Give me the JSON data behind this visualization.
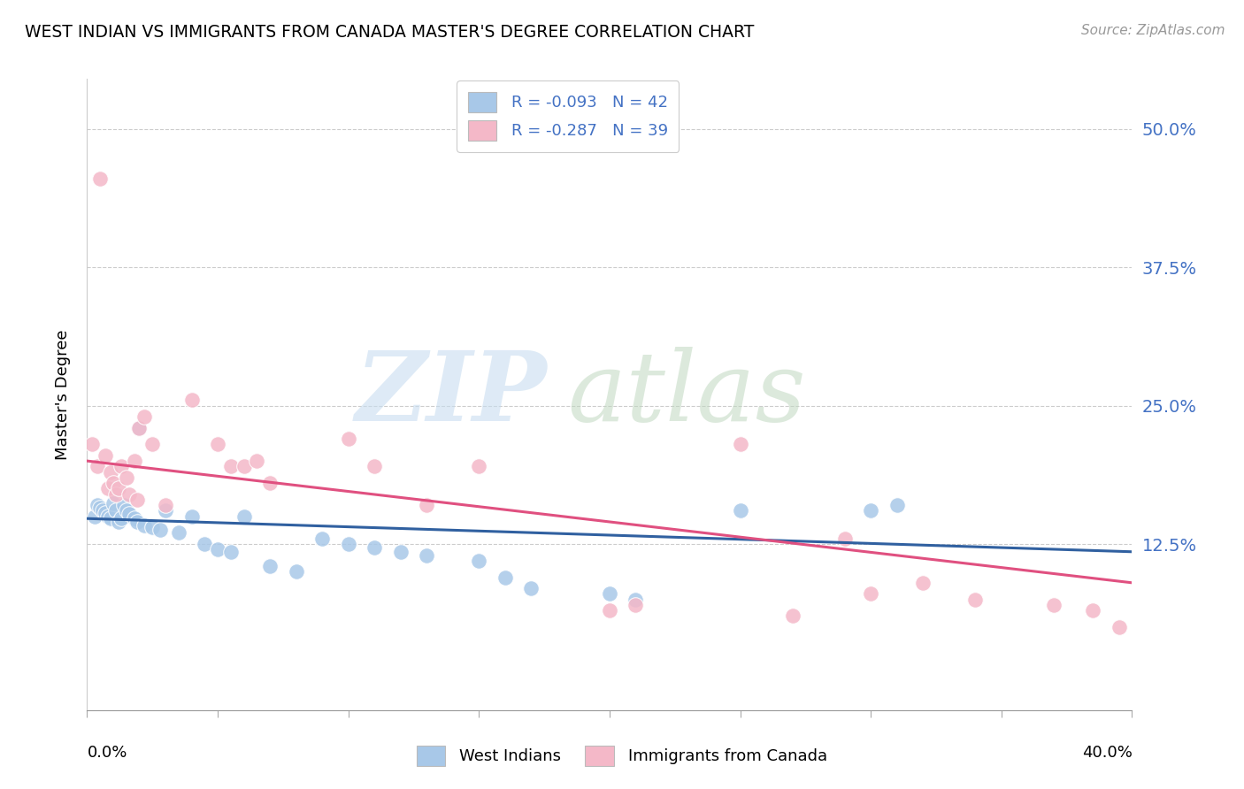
{
  "title": "WEST INDIAN VS IMMIGRANTS FROM CANADA MASTER'S DEGREE CORRELATION CHART",
  "source": "Source: ZipAtlas.com",
  "ylabel": "Master's Degree",
  "ytick_labels": [
    "12.5%",
    "25.0%",
    "37.5%",
    "50.0%"
  ],
  "ytick_values": [
    0.125,
    0.25,
    0.375,
    0.5
  ],
  "xlim": [
    0.0,
    0.4
  ],
  "ylim": [
    -0.025,
    0.545
  ],
  "legend1_text": "R = -0.093   N = 42",
  "legend2_text": "R = -0.287   N = 39",
  "color_blue": "#a8c8e8",
  "color_pink": "#f4b8c8",
  "color_blue_line": "#3060a0",
  "color_pink_line": "#e05080",
  "background": "#ffffff",
  "west_indians_x": [
    0.003,
    0.004,
    0.005,
    0.006,
    0.007,
    0.008,
    0.009,
    0.01,
    0.011,
    0.012,
    0.013,
    0.014,
    0.015,
    0.016,
    0.018,
    0.019,
    0.02,
    0.022,
    0.025,
    0.028,
    0.03,
    0.035,
    0.04,
    0.045,
    0.05,
    0.055,
    0.06,
    0.07,
    0.08,
    0.09,
    0.1,
    0.11,
    0.12,
    0.13,
    0.15,
    0.16,
    0.17,
    0.2,
    0.21,
    0.25,
    0.3,
    0.31
  ],
  "west_indians_y": [
    0.15,
    0.16,
    0.158,
    0.155,
    0.153,
    0.15,
    0.148,
    0.162,
    0.155,
    0.145,
    0.148,
    0.16,
    0.155,
    0.152,
    0.148,
    0.145,
    0.23,
    0.142,
    0.14,
    0.138,
    0.155,
    0.135,
    0.15,
    0.125,
    0.12,
    0.118,
    0.15,
    0.105,
    0.1,
    0.13,
    0.125,
    0.122,
    0.118,
    0.115,
    0.11,
    0.095,
    0.085,
    0.08,
    0.075,
    0.155,
    0.155,
    0.16
  ],
  "canada_x": [
    0.002,
    0.004,
    0.005,
    0.007,
    0.008,
    0.009,
    0.01,
    0.011,
    0.012,
    0.013,
    0.015,
    0.016,
    0.018,
    0.019,
    0.02,
    0.022,
    0.025,
    0.03,
    0.04,
    0.05,
    0.055,
    0.06,
    0.065,
    0.07,
    0.1,
    0.11,
    0.13,
    0.15,
    0.2,
    0.21,
    0.25,
    0.27,
    0.29,
    0.3,
    0.32,
    0.34,
    0.37,
    0.385,
    0.395
  ],
  "canada_y": [
    0.215,
    0.195,
    0.455,
    0.205,
    0.175,
    0.19,
    0.18,
    0.17,
    0.175,
    0.195,
    0.185,
    0.17,
    0.2,
    0.165,
    0.23,
    0.24,
    0.215,
    0.16,
    0.255,
    0.215,
    0.195,
    0.195,
    0.2,
    0.18,
    0.22,
    0.195,
    0.16,
    0.195,
    0.065,
    0.07,
    0.215,
    0.06,
    0.13,
    0.08,
    0.09,
    0.075,
    0.07,
    0.065,
    0.05
  ],
  "blue_line_x": [
    0.0,
    0.4
  ],
  "blue_line_y": [
    0.148,
    0.118
  ],
  "pink_line_x": [
    0.0,
    0.4
  ],
  "pink_line_y": [
    0.2,
    0.09
  ]
}
